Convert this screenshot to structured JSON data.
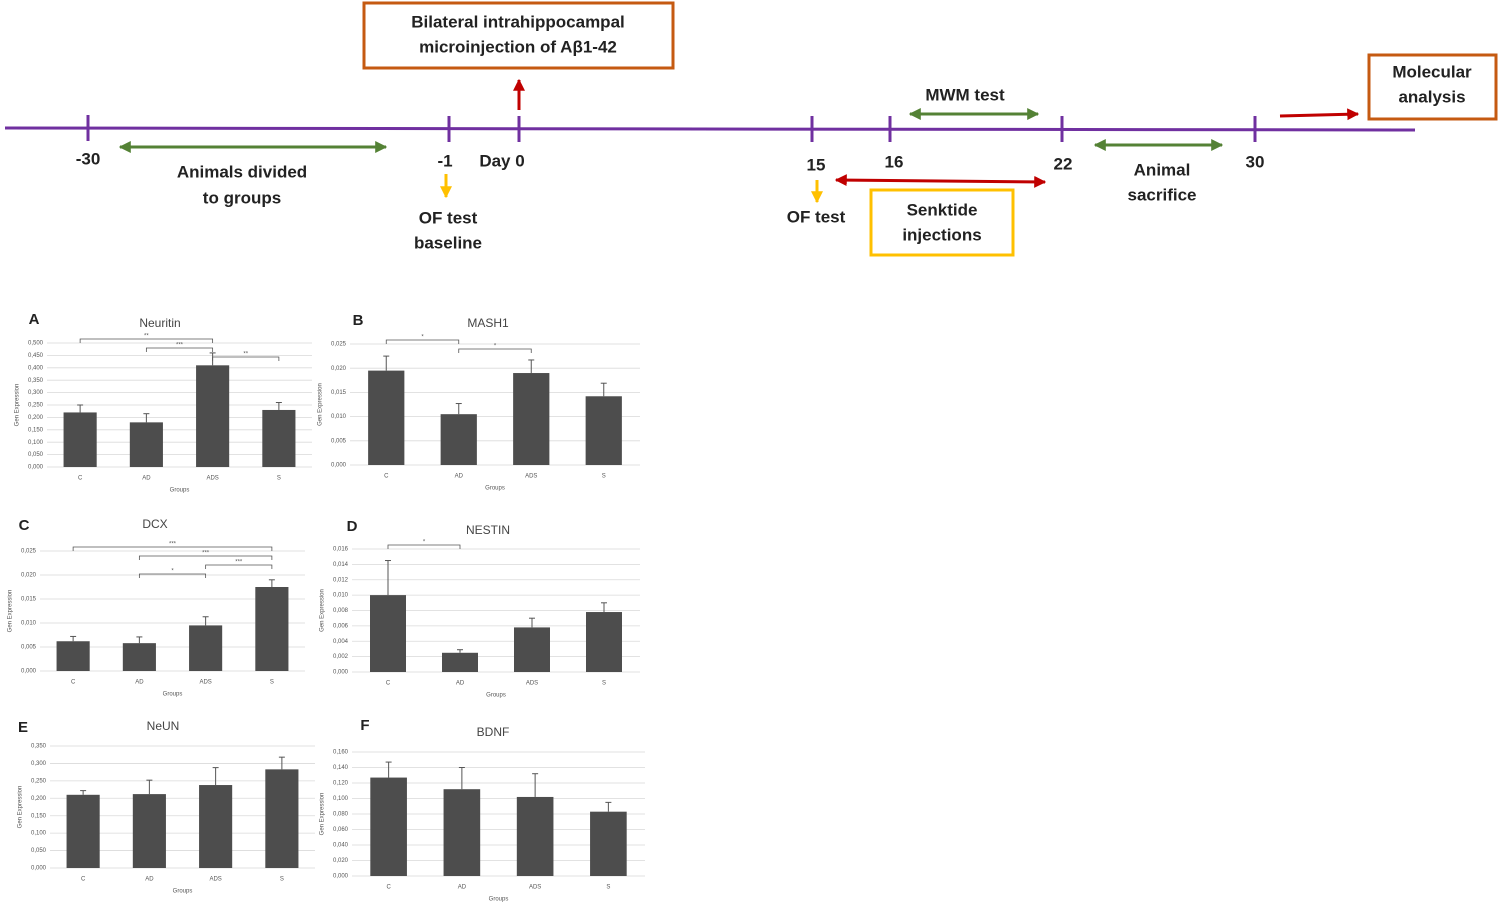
{
  "timeline": {
    "ticks": [
      "-30",
      "-1",
      "Day 0",
      "15",
      "16",
      "22",
      "30"
    ],
    "injection_box": [
      "Bilateral intrahippocampal",
      "microinjection of Aβ1-42"
    ],
    "molecular_box": [
      "Molecular",
      "analysis"
    ],
    "senktide_box": [
      "Senktide",
      "injections"
    ],
    "mwm": "MWM test",
    "groups": [
      "Animals divided",
      "to groups"
    ],
    "of_baseline": [
      "OF test",
      "baseline"
    ],
    "of_test": "OF test",
    "sacrifice": [
      "Animal",
      "sacrifice"
    ]
  },
  "chart_data": [
    {
      "type": "bar",
      "panel": "A",
      "title": "Neuritin",
      "categories": [
        "C",
        "AD",
        "ADS",
        "S"
      ],
      "values": [
        0.22,
        0.18,
        0.41,
        0.23
      ],
      "errors": [
        0.03,
        0.035,
        0.05,
        0.03
      ],
      "color": "#4d4d4d",
      "ylim": [
        0,
        0.5
      ],
      "yticks": [
        {
          "value": 0,
          "label": "0,000"
        },
        {
          "value": 0.05,
          "label": "0,050"
        },
        {
          "value": 0.1,
          "label": "0,100"
        },
        {
          "value": 0.15,
          "label": "0,150"
        },
        {
          "value": 0.2,
          "label": "0,200"
        },
        {
          "value": 0.25,
          "label": "0,250"
        },
        {
          "value": 0.3,
          "label": "0,300"
        },
        {
          "value": 0.35,
          "label": "0,350"
        },
        {
          "value": 0.4,
          "label": "0,400"
        },
        {
          "value": 0.45,
          "label": "0,450"
        },
        {
          "value": 0.5,
          "label": "0,500"
        }
      ],
      "ylabel": "Gen Expression",
      "xlabel": "Groups",
      "grid": true,
      "annotations": [
        {
          "text": "**",
          "between": [
            "C",
            "ADS"
          ]
        },
        {
          "text": "***",
          "between": [
            "AD",
            "ADS"
          ]
        },
        {
          "text": "**",
          "between": [
            "ADS",
            "S"
          ]
        }
      ]
    },
    {
      "type": "bar",
      "panel": "B",
      "title": "MASH1",
      "categories": [
        "C",
        "AD",
        "ADS",
        "S"
      ],
      "values": [
        0.0195,
        0.0105,
        0.019,
        0.0142
      ],
      "errors": [
        0.003,
        0.0022,
        0.0027,
        0.0027
      ],
      "color": "#4d4d4d",
      "ylim": [
        0,
        0.025
      ],
      "yticks": [
        {
          "value": 0,
          "label": "0,000"
        },
        {
          "value": 0.005,
          "label": "0,005"
        },
        {
          "value": 0.01,
          "label": "0,010"
        },
        {
          "value": 0.015,
          "label": "0,015"
        },
        {
          "value": 0.02,
          "label": "0,020"
        },
        {
          "value": 0.025,
          "label": "0,025"
        }
      ],
      "ylabel": "Gen Expression",
      "xlabel": "Groups",
      "grid": true,
      "annotations": [
        {
          "text": "*",
          "between": [
            "C",
            "AD"
          ]
        },
        {
          "text": "*",
          "between": [
            "AD",
            "ADS"
          ]
        }
      ]
    },
    {
      "type": "bar",
      "panel": "C",
      "title": "DCX",
      "categories": [
        "C",
        "AD",
        "ADS",
        "S"
      ],
      "values": [
        0.0062,
        0.0058,
        0.0095,
        0.0175
      ],
      "errors": [
        0.001,
        0.0013,
        0.0018,
        0.0015
      ],
      "color": "#4d4d4d",
      "ylim": [
        0,
        0.025
      ],
      "yticks": [
        {
          "value": 0,
          "label": "0,000"
        },
        {
          "value": 0.005,
          "label": "0,005"
        },
        {
          "value": 0.01,
          "label": "0,010"
        },
        {
          "value": 0.015,
          "label": "0,015"
        },
        {
          "value": 0.02,
          "label": "0,020"
        },
        {
          "value": 0.025,
          "label": "0,025"
        }
      ],
      "ylabel": "Gen Expression",
      "xlabel": "Groups",
      "grid": true,
      "annotations": [
        {
          "text": "***",
          "between": [
            "C",
            "S"
          ]
        },
        {
          "text": "***",
          "between": [
            "AD",
            "S"
          ]
        },
        {
          "text": "***",
          "between": [
            "ADS",
            "S"
          ]
        },
        {
          "text": "*",
          "between": [
            "AD",
            "ADS"
          ]
        }
      ]
    },
    {
      "type": "bar",
      "panel": "D",
      "title": "NESTIN",
      "categories": [
        "C",
        "AD",
        "ADS",
        "S"
      ],
      "values": [
        0.01,
        0.0025,
        0.0058,
        0.0078
      ],
      "errors": [
        0.0045,
        0.0004,
        0.0012,
        0.0012
      ],
      "color": "#4d4d4d",
      "ylim": [
        0,
        0.016
      ],
      "yticks": [
        {
          "value": 0,
          "label": "0,000"
        },
        {
          "value": 0.002,
          "label": "0,002"
        },
        {
          "value": 0.004,
          "label": "0,004"
        },
        {
          "value": 0.006,
          "label": "0,006"
        },
        {
          "value": 0.008,
          "label": "0,008"
        },
        {
          "value": 0.01,
          "label": "0,010"
        },
        {
          "value": 0.012,
          "label": "0,012"
        },
        {
          "value": 0.014,
          "label": "0,014"
        },
        {
          "value": 0.016,
          "label": "0,016"
        }
      ],
      "ylabel": "Gen Expression",
      "xlabel": "Groups",
      "grid": true,
      "annotations": [
        {
          "text": "*",
          "between": [
            "C",
            "AD"
          ]
        }
      ]
    },
    {
      "type": "bar",
      "panel": "E",
      "title": "NeUN",
      "categories": [
        "C",
        "AD",
        "ADS",
        "S"
      ],
      "values": [
        0.21,
        0.212,
        0.238,
        0.283
      ],
      "errors": [
        0.012,
        0.04,
        0.05,
        0.035
      ],
      "color": "#4d4d4d",
      "ylim": [
        0,
        0.35
      ],
      "yticks": [
        {
          "value": 0,
          "label": "0,000"
        },
        {
          "value": 0.05,
          "label": "0,050"
        },
        {
          "value": 0.1,
          "label": "0,100"
        },
        {
          "value": 0.15,
          "label": "0,150"
        },
        {
          "value": 0.2,
          "label": "0,200"
        },
        {
          "value": 0.25,
          "label": "0,250"
        },
        {
          "value": 0.3,
          "label": "0,300"
        },
        {
          "value": 0.35,
          "label": "0,350"
        }
      ],
      "ylabel": "Gen Expression",
      "xlabel": "Groups",
      "grid": true,
      "annotations": []
    },
    {
      "type": "bar",
      "panel": "F",
      "title": "BDNF",
      "categories": [
        "C",
        "AD",
        "ADS",
        "S"
      ],
      "values": [
        0.127,
        0.112,
        0.102,
        0.083
      ],
      "errors": [
        0.02,
        0.028,
        0.03,
        0.012
      ],
      "color": "#4d4d4d",
      "ylim": [
        0,
        0.16
      ],
      "yticks": [
        {
          "value": 0,
          "label": "0,000"
        },
        {
          "value": 0.02,
          "label": "0,020"
        },
        {
          "value": 0.04,
          "label": "0,040"
        },
        {
          "value": 0.06,
          "label": "0,060"
        },
        {
          "value": 0.08,
          "label": "0,080"
        },
        {
          "value": 0.1,
          "label": "0,100"
        },
        {
          "value": 0.12,
          "label": "0,120"
        },
        {
          "value": 0.14,
          "label": "0,140"
        },
        {
          "value": 0.16,
          "label": "0,160"
        }
      ],
      "ylabel": "Gen Expression",
      "xlabel": "Groups",
      "grid": true,
      "annotations": []
    }
  ]
}
